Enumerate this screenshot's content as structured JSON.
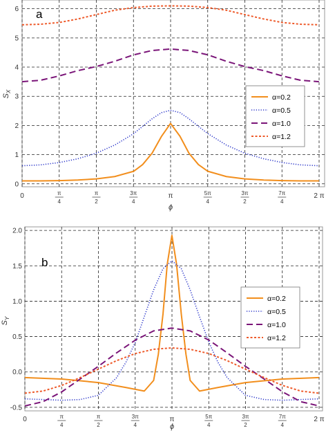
{
  "chart_data": [
    {
      "type": "line",
      "panel_label": "a",
      "xlabel": "ϕ",
      "ylabel": "S",
      "ylabel_sub": "X",
      "xlim": [
        0,
        6.2832
      ],
      "ylim": [
        -0.1,
        6.3
      ],
      "x_ticks": [
        {
          "value": 0,
          "label": "0"
        },
        {
          "value": 0.7854,
          "label": "π/4"
        },
        {
          "value": 1.5708,
          "label": "π/2"
        },
        {
          "value": 2.3562,
          "label": "3π/4"
        },
        {
          "value": 3.1416,
          "label": "π"
        },
        {
          "value": 3.927,
          "label": "5π/4"
        },
        {
          "value": 4.7124,
          "label": "3π/2"
        },
        {
          "value": 5.4978,
          "label": "7π/4"
        },
        {
          "value": 6.2832,
          "label": "2 π"
        }
      ],
      "y_ticks": [
        {
          "value": 0,
          "label": "0"
        },
        {
          "value": 1,
          "label": "1"
        },
        {
          "value": 2,
          "label": "2"
        },
        {
          "value": 3,
          "label": "3"
        },
        {
          "value": 4,
          "label": "4"
        },
        {
          "value": 5,
          "label": "5"
        },
        {
          "value": 6,
          "label": "6"
        }
      ],
      "grid": true,
      "legend_position": "right",
      "series": [
        {
          "name": "α=0.2",
          "color": "#f28e1c",
          "dash": "solid",
          "x": [
            0,
            0.39,
            0.79,
            1.18,
            1.57,
            1.96,
            2.36,
            2.55,
            2.75,
            2.95,
            3.14,
            3.34,
            3.53,
            3.73,
            3.93,
            4.32,
            4.71,
            5.11,
            5.5,
            5.89,
            6.28
          ],
          "y": [
            0.1,
            0.1,
            0.11,
            0.13,
            0.17,
            0.25,
            0.43,
            0.66,
            1.05,
            1.63,
            2.07,
            1.63,
            1.05,
            0.66,
            0.43,
            0.25,
            0.17,
            0.13,
            0.11,
            0.1,
            0.1
          ]
        },
        {
          "name": "α=0.5",
          "color": "#2a35c9",
          "dash": "dotted",
          "x": [
            0,
            0.39,
            0.79,
            1.18,
            1.57,
            1.96,
            2.36,
            2.55,
            2.75,
            2.95,
            3.14,
            3.34,
            3.53,
            3.73,
            3.93,
            4.32,
            4.71,
            5.11,
            5.5,
            5.89,
            6.28
          ],
          "y": [
            0.62,
            0.65,
            0.73,
            0.86,
            1.05,
            1.33,
            1.72,
            1.97,
            2.23,
            2.44,
            2.52,
            2.44,
            2.23,
            1.97,
            1.72,
            1.33,
            1.05,
            0.86,
            0.73,
            0.65,
            0.62
          ]
        },
        {
          "name": "α=1.0",
          "color": "#7a1478",
          "dash": "dashed",
          "x": [
            0,
            0.39,
            0.79,
            1.18,
            1.57,
            1.96,
            2.36,
            2.75,
            3.14,
            3.53,
            3.93,
            4.32,
            4.71,
            5.11,
            5.5,
            5.89,
            6.28
          ],
          "y": [
            3.5,
            3.55,
            3.7,
            3.88,
            4.02,
            4.2,
            4.42,
            4.57,
            4.62,
            4.57,
            4.42,
            4.2,
            4.02,
            3.88,
            3.7,
            3.55,
            3.5
          ]
        },
        {
          "name": "α=1.2",
          "color": "#ee5a2a",
          "dash": "short-dashed",
          "x": [
            0,
            0.39,
            0.79,
            1.18,
            1.57,
            1.96,
            2.36,
            2.75,
            3.14,
            3.53,
            3.93,
            4.32,
            4.71,
            5.11,
            5.5,
            5.89,
            6.28
          ],
          "y": [
            5.45,
            5.47,
            5.53,
            5.65,
            5.8,
            5.95,
            6.04,
            6.09,
            6.1,
            6.09,
            6.04,
            5.95,
            5.8,
            5.65,
            5.53,
            5.47,
            5.45
          ]
        }
      ]
    },
    {
      "type": "line",
      "panel_label": "b",
      "xlabel": "ϕ",
      "ylabel": "S",
      "ylabel_sub": "Y",
      "xlim": [
        0,
        6.2832
      ],
      "ylim": [
        -0.55,
        2.05
      ],
      "x_ticks": [
        {
          "value": 0,
          "label": "0"
        },
        {
          "value": 0.7854,
          "label": "π/4"
        },
        {
          "value": 1.5708,
          "label": "π/2"
        },
        {
          "value": 2.3562,
          "label": "3π/4"
        },
        {
          "value": 3.1416,
          "label": "π"
        },
        {
          "value": 3.927,
          "label": "5π/4"
        },
        {
          "value": 4.7124,
          "label": "3π/2"
        },
        {
          "value": 5.4978,
          "label": "7π/4"
        },
        {
          "value": 6.2832,
          "label": "2 π"
        }
      ],
      "y_ticks": [
        {
          "value": -0.5,
          "label": "-0.5"
        },
        {
          "value": 0,
          "label": "0.0"
        },
        {
          "value": 0.5,
          "label": "0.5"
        },
        {
          "value": 1.0,
          "label": "1.0"
        },
        {
          "value": 1.5,
          "label": "1.5"
        },
        {
          "value": 2.0,
          "label": "2.0"
        }
      ],
      "grid": true,
      "legend_position": "right",
      "series": [
        {
          "name": "α=0.2",
          "color": "#f28e1c",
          "dash": "solid",
          "x": [
            0,
            0.79,
            1.57,
            2.16,
            2.55,
            2.75,
            2.85,
            2.95,
            3.04,
            3.14,
            3.24,
            3.34,
            3.44,
            3.53,
            3.73,
            4.12,
            4.71,
            5.5,
            6.28
          ],
          "y": [
            -0.08,
            -0.1,
            -0.15,
            -0.22,
            -0.27,
            -0.12,
            0.25,
            0.82,
            1.52,
            1.93,
            1.52,
            0.82,
            0.25,
            -0.12,
            -0.27,
            -0.22,
            -0.15,
            -0.1,
            -0.08
          ]
        },
        {
          "name": "α=0.5",
          "color": "#2a35c9",
          "dash": "dotted",
          "x": [
            0,
            0.39,
            0.79,
            1.18,
            1.57,
            1.96,
            2.16,
            2.36,
            2.55,
            2.75,
            2.95,
            3.14,
            3.34,
            3.53,
            3.73,
            3.93,
            4.12,
            4.32,
            4.71,
            5.11,
            5.5,
            5.89,
            6.28
          ],
          "y": [
            -0.38,
            -0.39,
            -0.4,
            -0.39,
            -0.33,
            -0.08,
            0.14,
            0.42,
            0.78,
            1.16,
            1.46,
            1.57,
            1.46,
            1.16,
            0.78,
            0.42,
            0.14,
            -0.08,
            -0.33,
            -0.39,
            -0.4,
            -0.39,
            -0.38
          ]
        },
        {
          "name": "α=1.0",
          "color": "#7a1478",
          "dash": "dashed",
          "x": [
            0,
            0.39,
            0.79,
            1.18,
            1.57,
            1.96,
            2.36,
            2.75,
            3.14,
            3.53,
            3.93,
            4.32,
            4.71,
            5.11,
            5.5,
            5.89,
            6.28
          ],
          "y": [
            -0.48,
            -0.42,
            -0.28,
            -0.1,
            0.08,
            0.27,
            0.45,
            0.58,
            0.62,
            0.58,
            0.45,
            0.27,
            0.08,
            -0.1,
            -0.28,
            -0.42,
            -0.48
          ]
        },
        {
          "name": "α=1.2",
          "color": "#ee5a2a",
          "dash": "short-dashed",
          "x": [
            0,
            0.39,
            0.79,
            1.18,
            1.57,
            1.96,
            2.36,
            2.75,
            3.14,
            3.53,
            3.93,
            4.32,
            4.71,
            5.11,
            5.5,
            5.89,
            6.28
          ],
          "y": [
            -0.3,
            -0.27,
            -0.19,
            -0.08,
            0.04,
            0.16,
            0.26,
            0.32,
            0.34,
            0.32,
            0.26,
            0.16,
            0.04,
            -0.08,
            -0.19,
            -0.27,
            -0.3
          ]
        }
      ]
    }
  ]
}
